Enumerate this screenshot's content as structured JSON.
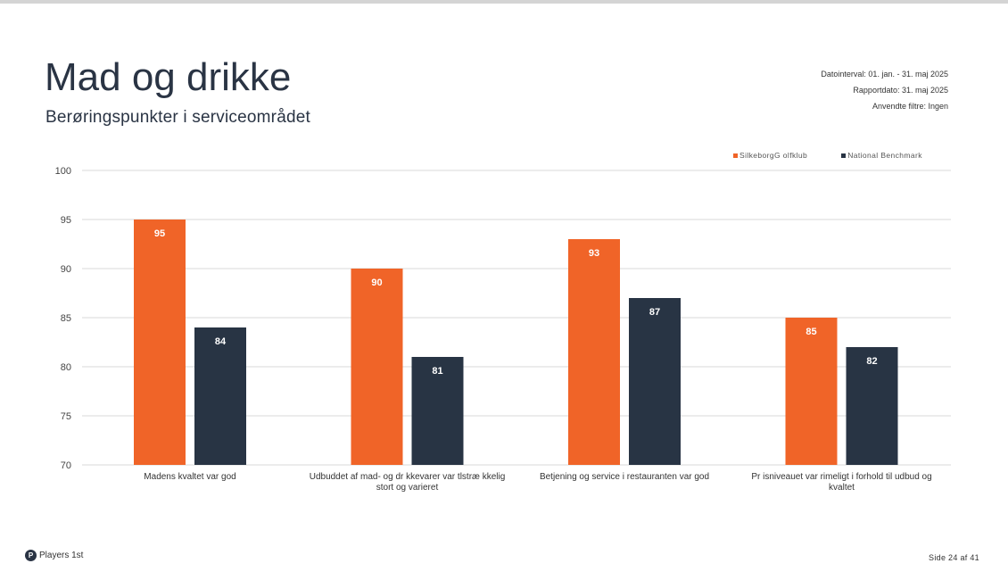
{
  "header": {
    "title": "Mad og drikke",
    "subtitle": "Berøringspunkter i serviceområdet"
  },
  "meta": {
    "date_interval": "Datointerval: 01. jan. - 31. maj 2025",
    "report_date": "Rapportdato: 31. maj 2025",
    "filters": "Anvendte filtre: Ingen"
  },
  "footer": {
    "brand": "Players 1st",
    "logo_letter": "P",
    "page": "Side 24 af 41"
  },
  "colors": {
    "series1": "#f06428",
    "series2": "#283444",
    "grid": "#d9d9d9"
  },
  "chart_data": {
    "type": "bar",
    "title": "",
    "xlabel": "",
    "ylabel": "",
    "ylim": [
      70,
      100
    ],
    "yticks": [
      70,
      75,
      80,
      85,
      90,
      95,
      100
    ],
    "legend_position": "top-right",
    "categories": [
      [
        "Madens kvaltet var  god"
      ],
      [
        "Udbuddet af mad- og dr kkevarer var  tlstræ kkelig",
        "stort og varieret"
      ],
      [
        "Betjening og service i restauranten var god"
      ],
      [
        "Pr isniveauet var rimeligt i forhold til udbud og",
        "kvaltet"
      ]
    ],
    "series": [
      {
        "name": "SilkeborgG olfklub",
        "values": [
          95,
          90,
          93,
          85
        ]
      },
      {
        "name": "National Benchmark",
        "values": [
          84,
          81,
          87,
          82
        ]
      }
    ]
  }
}
